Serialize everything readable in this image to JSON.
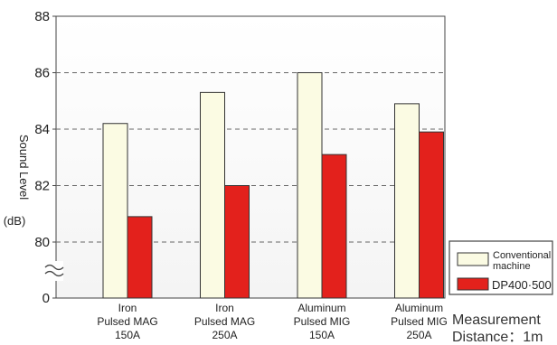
{
  "chart_data": {
    "type": "bar",
    "ylabel": "Sound Level",
    "yunit": "(dB)",
    "ylim": [
      80,
      88
    ],
    "axis_break": true,
    "yticks": [
      "88",
      "86",
      "84",
      "82",
      "80",
      "0"
    ],
    "grid": "dashed-horizontal",
    "categories": [
      [
        "Iron",
        "Pulsed MAG",
        "150A"
      ],
      [
        "Iron",
        "Pulsed MAG",
        "250A"
      ],
      [
        "Aluminum",
        "Pulsed MIG",
        "150A"
      ],
      [
        "Aluminum",
        "Pulsed MIG",
        "250A"
      ]
    ],
    "series": [
      {
        "name": "Conventional machine",
        "legend_lines": [
          "Conventional",
          "machine"
        ],
        "color": "#fbfbe3",
        "values": [
          84.2,
          85.3,
          86.0,
          84.9
        ]
      },
      {
        "name": "DP400·500",
        "color": "#e3211c",
        "values": [
          80.9,
          82.0,
          83.1,
          83.9
        ]
      }
    ],
    "legend": "bottom-right",
    "note_lines": [
      "Measurement",
      "Distance：1m"
    ]
  }
}
